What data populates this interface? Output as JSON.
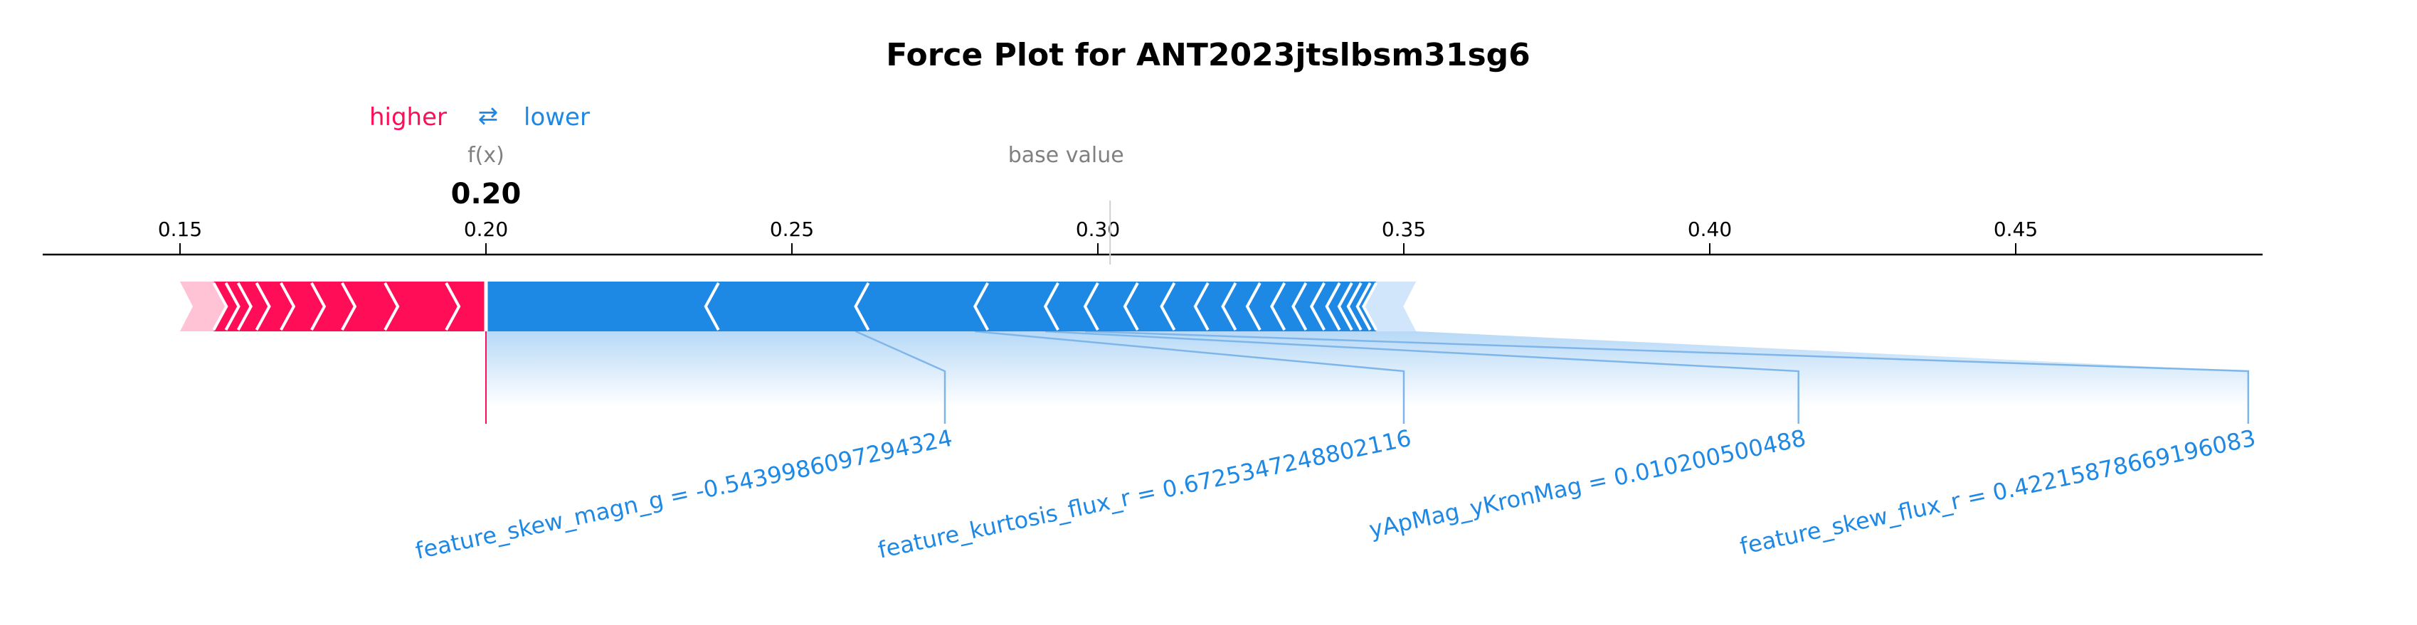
{
  "chart_data": {
    "type": "force",
    "title": "Force Plot for ANT2023jtslbsm31sg6",
    "legend": {
      "higher": "higher",
      "arrow": "⇄",
      "lower": "lower"
    },
    "fx_label": "f(x)",
    "fx_value": 0.2,
    "fx_value_text": "0.20",
    "base_label": "base value",
    "base_value": 0.302,
    "xlim": [
      0.128,
      0.49
    ],
    "ticks": [
      {
        "value": 0.15,
        "label": "0.15"
      },
      {
        "value": 0.2,
        "label": "0.20"
      },
      {
        "value": 0.25,
        "label": "0.25"
      },
      {
        "value": 0.3,
        "label": "0.30"
      },
      {
        "value": 0.35,
        "label": "0.35"
      },
      {
        "value": 0.4,
        "label": "0.40"
      },
      {
        "value": 0.45,
        "label": "0.45"
      }
    ],
    "positive_breaks": [
      0.15,
      0.1555,
      0.1575,
      0.1595,
      0.1625,
      0.1665,
      0.1715,
      0.1765,
      0.1835,
      0.1935,
      0.2
    ],
    "negative_breaks": [
      0.2,
      0.238,
      0.2625,
      0.282,
      0.2935,
      0.3,
      0.3065,
      0.3125,
      0.318,
      0.3225,
      0.3265,
      0.3305,
      0.334,
      0.337,
      0.3395,
      0.3415,
      0.343,
      0.3445,
      0.3455,
      0.352
    ],
    "labeled_features": [
      {
        "label": "feature_skew_magn_g = -0.5439986097294324",
        "start": 0.238,
        "end": 0.2625,
        "anchor": 0.275
      },
      {
        "label": "feature_kurtosis_flux_r = 0.6725347248802116",
        "start": 0.2625,
        "end": 0.282,
        "anchor": 0.35
      },
      {
        "label": "yApMag_yKronMag = 0.010200500488",
        "start": 0.282,
        "end": 0.2935,
        "anchor": 0.4145
      },
      {
        "label": "feature_skew_flux_r = 0.42215878669196083",
        "start": 0.2935,
        "end": 0.3,
        "anchor": 0.488
      }
    ],
    "colors": {
      "positive": "#ff0d57",
      "positive_light": "#ffc3d5",
      "negative": "#1e88e5",
      "negative_light": "#d1e6fa",
      "separator": "#ffffff",
      "axis": "#000000",
      "label_gray": "#808080"
    }
  }
}
